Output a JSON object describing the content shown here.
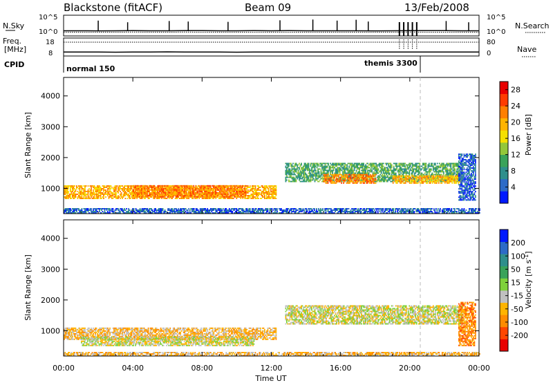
{
  "header": {
    "station": "Blackstone (fitACF)",
    "beam": "Beam 09",
    "date": "13/Feb/2008"
  },
  "colors": {
    "velocity_gray": "#c0c0c0",
    "axis": "#000000"
  },
  "chart_data": [
    {
      "type": "line",
      "panel": "noise-search",
      "left_label": "N.Sky",
      "right_label": "N.Search",
      "y_ticks_left": [
        "10^5",
        "10^0"
      ],
      "y_ticks_right": [
        "10^5",
        "10^0"
      ],
      "y_scale": "log",
      "ylim": [
        1,
        100000
      ],
      "series": [
        {
          "values": [
            18,
            18,
            17,
            18,
            19,
            18,
            18,
            20,
            19,
            18,
            18,
            19,
            18,
            19,
            18,
            18,
            18,
            18,
            17,
            18,
            19,
            20,
            19,
            18,
            18
          ]
        },
        {
          "values": [
            8,
            8,
            8,
            8,
            9,
            8,
            8,
            9,
            8,
            8,
            8,
            8,
            8,
            8,
            8,
            8,
            8,
            8,
            8,
            8,
            9,
            8,
            8,
            8,
            8
          ]
        }
      ]
    },
    {
      "type": "line",
      "panel": "frequency-nave",
      "left_label": "Freq.",
      "left_unit": "[MHz]",
      "right_label": "Nave",
      "y_ticks_left": [
        "18",
        "8"
      ],
      "y_ticks_right": [
        "80",
        "0"
      ],
      "ylim": [
        8,
        18
      ],
      "series": [
        {
          "values": [
            10.2,
            10.2,
            10.2,
            10.1,
            10.2,
            10.2,
            10.3,
            10.2,
            10.2,
            10.2,
            10.1,
            10.2,
            10.2,
            10.2,
            10.2,
            10.2,
            10.2,
            10.2,
            10.2,
            10.2,
            10.2,
            10.2,
            10.2,
            10.2,
            10.2
          ]
        }
      ]
    },
    {
      "type": "table",
      "panel": "cpid",
      "left_label": "CPID",
      "segments": [
        {
          "label": "normal 150",
          "start_hour": 0,
          "end_hour": 20.7
        },
        {
          "label": "themis 3300",
          "start_hour": 20.7,
          "end_hour": 24
        }
      ]
    },
    {
      "type": "heatmap",
      "panel": "power",
      "ylabel": "Slant Range [km]",
      "ylim": [
        180,
        4600
      ],
      "yticks": [
        1000,
        2000,
        3000,
        4000
      ],
      "colorbar": {
        "label": "Power [dB]",
        "ticks": [
          "4",
          "8",
          "12",
          "16",
          "20",
          "24",
          "28"
        ],
        "range": [
          0,
          30
        ],
        "colors": [
          "#0019ff",
          "#2d6bc7",
          "#2f8f8c",
          "#3aa35a",
          "#93c73a",
          "#f5e000",
          "#ffb400",
          "#ff7f00",
          "#ff3c00",
          "#e80000"
        ]
      },
      "echo_bands": [
        {
          "start_hour": 0,
          "end_hour": 12.3,
          "range_low": 650,
          "range_high": 1080,
          "level": 6
        },
        {
          "start_hour": 4,
          "end_hour": 10.5,
          "range_low": 700,
          "range_high": 1100,
          "level": 7
        },
        {
          "start_hour": 0,
          "end_hour": 24,
          "range_low": 180,
          "range_high": 320,
          "level": 1
        },
        {
          "start_hour": 12.8,
          "end_hour": 23.0,
          "range_low": 1200,
          "range_high": 1800,
          "level": 3
        },
        {
          "start_hour": 15,
          "end_hour": 18,
          "range_low": 1150,
          "range_high": 1450,
          "level": 7
        },
        {
          "start_hour": 19,
          "end_hour": 23,
          "range_low": 1150,
          "range_high": 1400,
          "level": 6
        },
        {
          "start_hour": 22.8,
          "end_hour": 23.8,
          "range_low": 600,
          "range_high": 2100,
          "level": 1
        }
      ]
    },
    {
      "type": "heatmap",
      "panel": "velocity",
      "ylabel": "Slant Range [km]",
      "xlabel": "Time UT",
      "xticks": [
        "00:00",
        "04:00",
        "08:00",
        "12:00",
        "16:00",
        "20:00",
        "00:00"
      ],
      "xlim": [
        0,
        24
      ],
      "ylim": [
        180,
        4600
      ],
      "yticks": [
        1000,
        2000,
        3000,
        4000
      ],
      "colorbar": {
        "label": "Velocity [m s^-1]",
        "ticks": [
          "200",
          "100",
          "50",
          "15",
          "-15",
          "-50",
          "-100",
          "-200"
        ],
        "colors": [
          "#0019ff",
          "#2d6bc7",
          "#2f8f8c",
          "#3aa35a",
          "#7fd13b",
          "#c0c0c0",
          "#ffb400",
          "#ff8c00",
          "#ff4600",
          "#e80000"
        ]
      },
      "echo_bands": [
        {
          "start_hour": 0,
          "end_hour": 12.3,
          "range_low": 700,
          "range_high": 1100,
          "level": 6
        },
        {
          "start_hour": 1,
          "end_hour": 11,
          "range_low": 500,
          "range_high": 800,
          "level": 5
        },
        {
          "start_hour": 0,
          "end_hour": 24,
          "range_low": 180,
          "range_high": 300,
          "level": 6
        },
        {
          "start_hour": 12.8,
          "end_hour": 23.0,
          "range_low": 1200,
          "range_high": 1800,
          "level": 5
        },
        {
          "start_hour": 22.8,
          "end_hour": 23.8,
          "range_low": 500,
          "range_high": 1900,
          "level": 7
        }
      ]
    }
  ]
}
